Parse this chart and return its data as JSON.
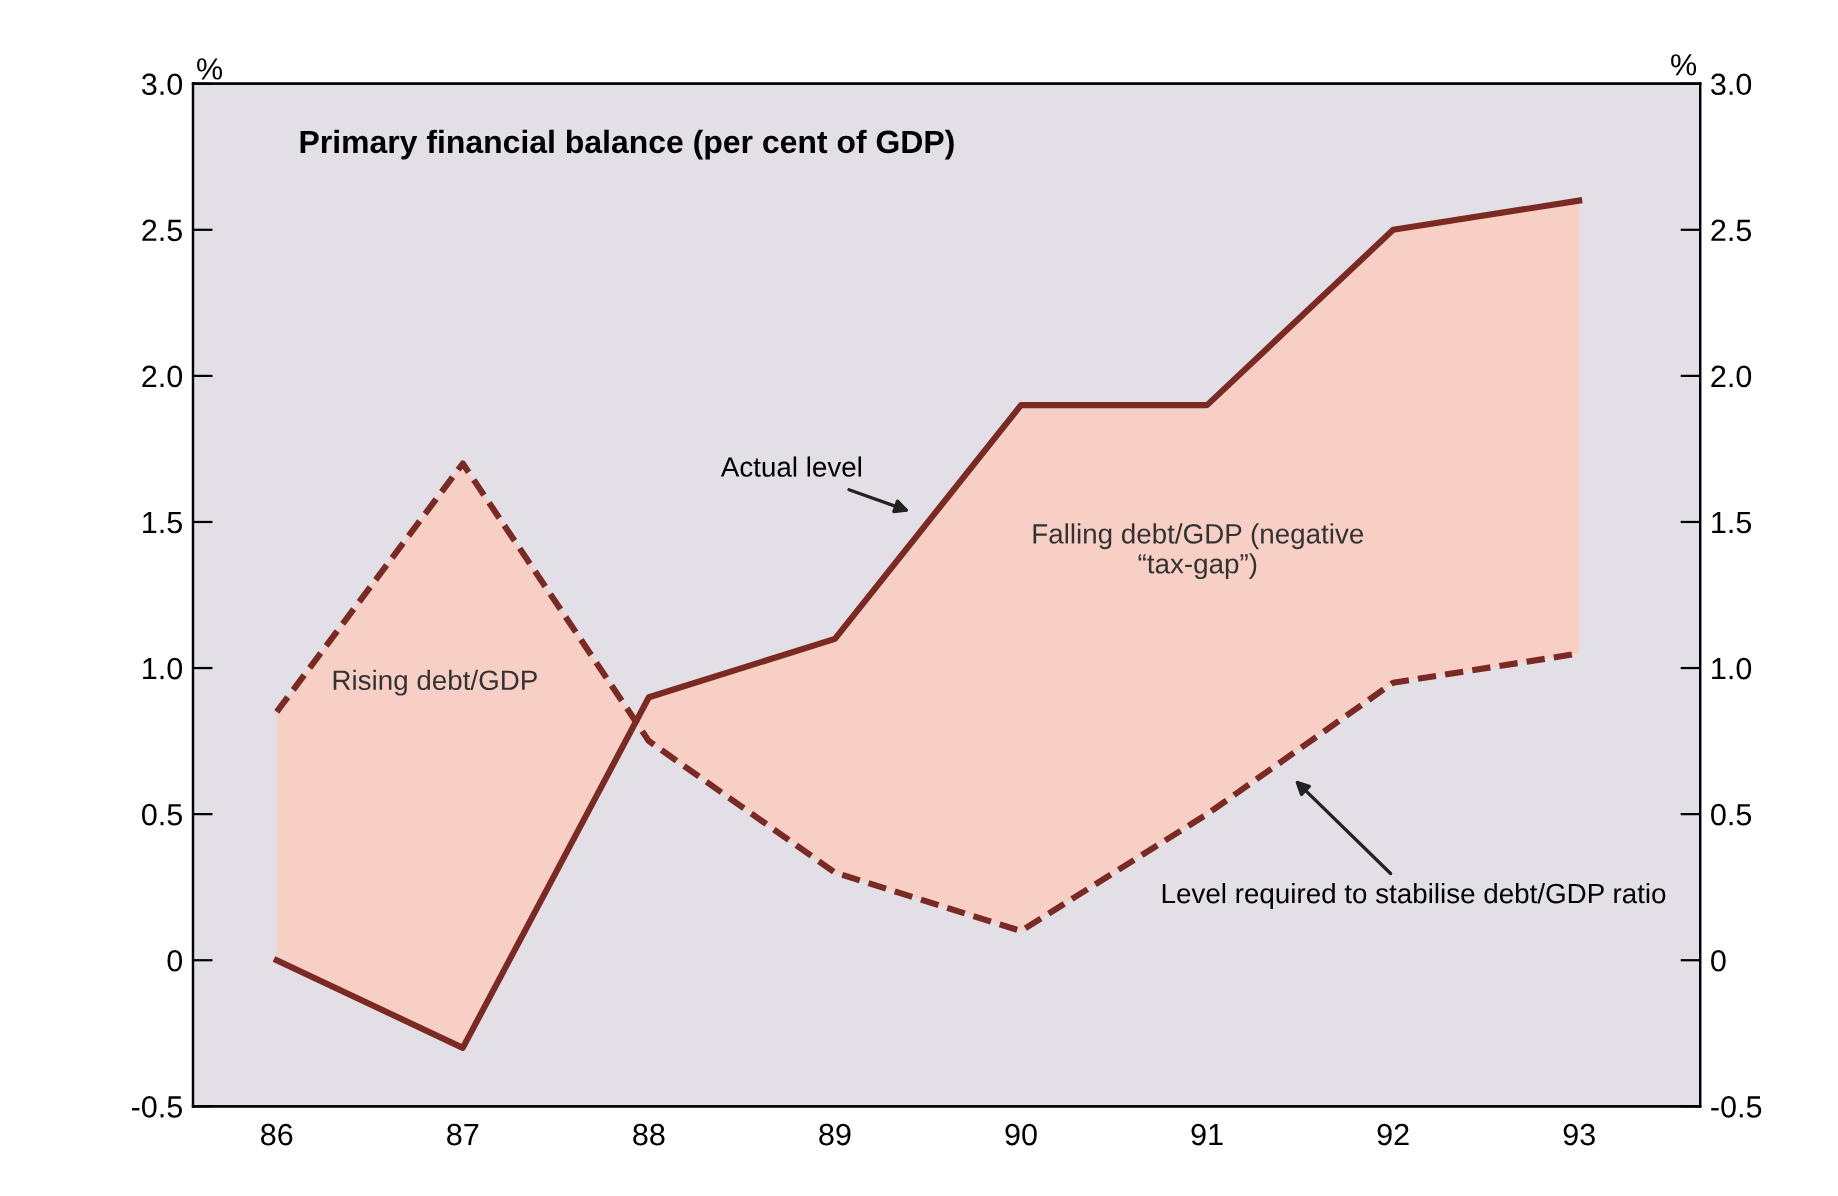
{
  "chart_data": {
    "type": "line",
    "title": "Primary financial balance (per cent of GDP)",
    "ylabel": "%",
    "y2label": "%",
    "categories": [
      "86",
      "87",
      "88",
      "89",
      "90",
      "91",
      "92",
      "93"
    ],
    "series": [
      {
        "name": "Actual level",
        "color": "#7a2a22",
        "line_style": "solid",
        "values": [
          0,
          -0.3,
          0.9,
          1.1,
          1.9,
          1.9,
          2.5,
          2.6
        ],
        "lower": [
          0.85,
          1.7,
          0.75,
          0.3,
          0.1,
          0.5,
          0.95,
          1.05
        ],
        "upper": [
          0,
          -0.3,
          0.9,
          1.1,
          1.9,
          1.9,
          2.5,
          2.6
        ]
      },
      {
        "name": "Level required to stabilise debt/GDP ratio",
        "color": "#7a2a22",
        "line_style": "dashed",
        "values": [
          0.85,
          1.7,
          0.75,
          0.3,
          0.1,
          0.5,
          0.95,
          1.05
        ]
      }
    ],
    "ylim": [
      -0.5,
      3.0
    ],
    "yticks": [
      {
        "value": -0.5,
        "label": "-0.5"
      },
      0,
      0.5,
      {
        "value": 1,
        "label": "1.0"
      },
      1.5,
      {
        "value": 2,
        "label": "2.0"
      },
      2.5,
      {
        "value": 3,
        "label": "3.0"
      }
    ],
    "y2lim": [
      -0.5,
      3.0
    ],
    "y2ticks": [
      {
        "value": -0.5,
        "label": "-0.5"
      },
      0,
      0.5,
      {
        "value": 1,
        "label": "1.0"
      },
      1.5,
      {
        "value": 2,
        "label": "2.0"
      },
      2.5,
      {
        "value": 3,
        "label": "3.0"
      }
    ],
    "annotations": [
      "Rising debt/GDP",
      "Falling debt/GDP (negative “tax-gap”)"
    ],
    "grid": false,
    "legend": false,
    "marker": "none"
  }
}
